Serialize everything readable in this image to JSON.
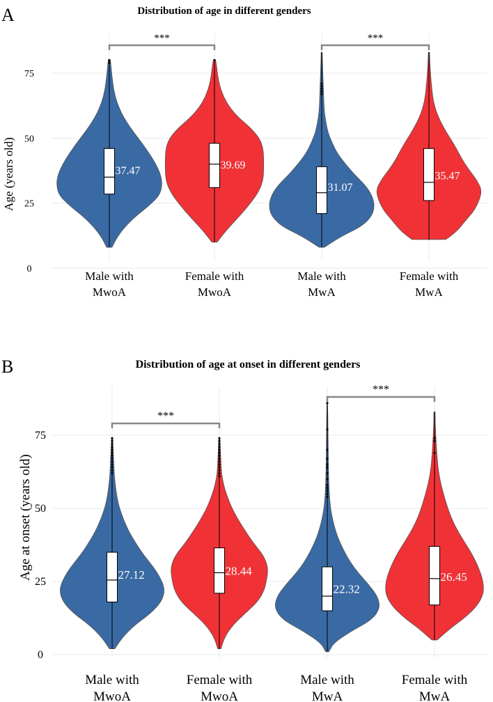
{
  "colors": {
    "male": "#3a6aa3",
    "female": "#f03236",
    "outline": "#555555",
    "grid": "#e8e8e8",
    "bracket": "#888888",
    "box_fill": "#ffffff"
  },
  "chart_data": [
    {
      "panel_label": "A",
      "type": "violin",
      "title": "Distribution of age in different genders",
      "xlabel": "",
      "ylabel": "Age (years old)",
      "ylim": [
        0,
        85
      ],
      "yticks": [
        0,
        25,
        50,
        75
      ],
      "tick_labels": [
        "0",
        "25",
        "50",
        "75"
      ],
      "grid": true,
      "groups": [
        {
          "name": "Male with MwoA",
          "label_lines": [
            "Male with",
            "MwoA"
          ],
          "color_key": "male",
          "min": 8,
          "max": 80,
          "q1": 28.5,
          "median": 35,
          "q3": 46,
          "mean": 37.47,
          "mean_label": "37.47",
          "density": [
            [
              8,
              0.05
            ],
            [
              12,
              0.15
            ],
            [
              16,
              0.3
            ],
            [
              20,
              0.5
            ],
            [
              24,
              0.75
            ],
            [
              28,
              0.95
            ],
            [
              32,
              1.0
            ],
            [
              36,
              0.97
            ],
            [
              40,
              0.88
            ],
            [
              44,
              0.76
            ],
            [
              48,
              0.62
            ],
            [
              52,
              0.47
            ],
            [
              56,
              0.33
            ],
            [
              60,
              0.22
            ],
            [
              64,
              0.14
            ],
            [
              68,
              0.09
            ],
            [
              72,
              0.06
            ],
            [
              76,
              0.04
            ],
            [
              80,
              0.02
            ]
          ],
          "outliers": [
            79,
            80
          ]
        },
        {
          "name": "Female with MwoA",
          "label_lines": [
            "Female with",
            "MwoA"
          ],
          "color_key": "female",
          "min": 10,
          "max": 80,
          "q1": 31,
          "median": 40,
          "q3": 48,
          "mean": 39.69,
          "mean_label": "39.69",
          "density": [
            [
              10,
              0.05
            ],
            [
              14,
              0.2
            ],
            [
              18,
              0.38
            ],
            [
              22,
              0.56
            ],
            [
              26,
              0.72
            ],
            [
              30,
              0.85
            ],
            [
              34,
              0.92
            ],
            [
              38,
              0.93
            ],
            [
              42,
              0.93
            ],
            [
              46,
              0.92
            ],
            [
              50,
              0.85
            ],
            [
              54,
              0.68
            ],
            [
              58,
              0.45
            ],
            [
              62,
              0.28
            ],
            [
              66,
              0.17
            ],
            [
              70,
              0.1
            ],
            [
              74,
              0.06
            ],
            [
              78,
              0.04
            ],
            [
              80,
              0.02
            ]
          ],
          "outliers": [
            80
          ]
        },
        {
          "name": "Male with MwA",
          "label_lines": [
            "Male with",
            "MwA"
          ],
          "color_key": "male",
          "min": 8,
          "max": 83,
          "q1": 21,
          "median": 29,
          "q3": 39,
          "mean": 31.07,
          "mean_label": "31.07",
          "density": [
            [
              8,
              0.05
            ],
            [
              12,
              0.35
            ],
            [
              16,
              0.75
            ],
            [
              20,
              0.95
            ],
            [
              24,
              1.0
            ],
            [
              28,
              0.95
            ],
            [
              32,
              0.82
            ],
            [
              36,
              0.62
            ],
            [
              40,
              0.45
            ],
            [
              44,
              0.3
            ],
            [
              48,
              0.2
            ],
            [
              52,
              0.12
            ],
            [
              56,
              0.08
            ],
            [
              60,
              0.05
            ],
            [
              64,
              0.04
            ],
            [
              70,
              0.03
            ],
            [
              76,
              0.02
            ],
            [
              83,
              0.01
            ]
          ],
          "outliers": [
            67,
            68,
            69,
            70,
            71
          ]
        },
        {
          "name": "Female with MwA",
          "label_lines": [
            "Female with",
            "MwA"
          ],
          "color_key": "female",
          "min": 11,
          "max": 83,
          "q1": 26,
          "median": 33,
          "q3": 46,
          "mean": 35.47,
          "mean_label": "35.47",
          "density": [
            [
              11,
              0.32
            ],
            [
              14,
              0.52
            ],
            [
              18,
              0.68
            ],
            [
              22,
              0.85
            ],
            [
              26,
              0.95
            ],
            [
              30,
              1.0
            ],
            [
              34,
              0.9
            ],
            [
              38,
              0.75
            ],
            [
              42,
              0.62
            ],
            [
              46,
              0.52
            ],
            [
              50,
              0.4
            ],
            [
              54,
              0.28
            ],
            [
              58,
              0.18
            ],
            [
              62,
              0.11
            ],
            [
              66,
              0.07
            ],
            [
              72,
              0.04
            ],
            [
              78,
              0.02
            ],
            [
              83,
              0.01
            ]
          ],
          "outliers": []
        }
      ],
      "comparisons": [
        {
          "groups": [
            0,
            1
          ],
          "y": 85,
          "label": "***"
        },
        {
          "groups": [
            2,
            3
          ],
          "y": 85,
          "label": "***"
        }
      ]
    },
    {
      "panel_label": "B",
      "type": "violin",
      "title": "Distribution of age at onset in different genders",
      "xlabel": "",
      "ylabel": "Age at onset (years old)",
      "ylim": [
        0,
        90
      ],
      "yticks": [
        0,
        25,
        50,
        75
      ],
      "tick_labels": [
        "0",
        "25",
        "50",
        "75"
      ],
      "grid": true,
      "groups": [
        {
          "name": "Male with MwoA",
          "label_lines": [
            "Male with",
            "MwoA"
          ],
          "color_key": "male",
          "min": 2,
          "max": 74,
          "q1": 18,
          "median": 25.5,
          "q3": 35,
          "mean": 27.12,
          "mean_label": "27.12",
          "density": [
            [
              2,
              0.05
            ],
            [
              6,
              0.2
            ],
            [
              10,
              0.42
            ],
            [
              14,
              0.72
            ],
            [
              18,
              0.93
            ],
            [
              22,
              1.0
            ],
            [
              26,
              0.92
            ],
            [
              30,
              0.78
            ],
            [
              34,
              0.6
            ],
            [
              38,
              0.45
            ],
            [
              42,
              0.32
            ],
            [
              46,
              0.22
            ],
            [
              50,
              0.14
            ],
            [
              54,
              0.09
            ],
            [
              58,
              0.06
            ],
            [
              62,
              0.04
            ],
            [
              66,
              0.03
            ],
            [
              70,
              0.02
            ],
            [
              74,
              0.01
            ]
          ],
          "outliers": [
            62,
            63,
            64,
            65,
            66,
            67,
            68,
            69,
            70,
            71,
            72,
            73,
            74
          ]
        },
        {
          "name": "Female with MwoA",
          "label_lines": [
            "Female with",
            "MwoA"
          ],
          "color_key": "female",
          "min": 2,
          "max": 74,
          "q1": 21,
          "median": 28,
          "q3": 36.5,
          "mean": 28.44,
          "mean_label": "28.44",
          "density": [
            [
              2,
              0.03
            ],
            [
              6,
              0.1
            ],
            [
              10,
              0.25
            ],
            [
              14,
              0.48
            ],
            [
              18,
              0.72
            ],
            [
              22,
              0.85
            ],
            [
              26,
              0.9
            ],
            [
              30,
              0.92
            ],
            [
              34,
              0.83
            ],
            [
              38,
              0.65
            ],
            [
              42,
              0.5
            ],
            [
              46,
              0.36
            ],
            [
              50,
              0.24
            ],
            [
              54,
              0.15
            ],
            [
              58,
              0.08
            ],
            [
              62,
              0.04
            ],
            [
              66,
              0.03
            ],
            [
              70,
              0.02
            ],
            [
              74,
              0.01
            ]
          ],
          "outliers": [
            61,
            62,
            63,
            64,
            65,
            66,
            67,
            68,
            69,
            70,
            71,
            72,
            73,
            74
          ]
        },
        {
          "name": "Male with MwA",
          "label_lines": [
            "Male with",
            "MwA"
          ],
          "color_key": "male",
          "min": 1,
          "max": 86,
          "q1": 15,
          "median": 20,
          "q3": 30,
          "mean": 22.32,
          "mean_label": "22.32",
          "density": [
            [
              1,
              0.03
            ],
            [
              4,
              0.12
            ],
            [
              8,
              0.45
            ],
            [
              12,
              0.85
            ],
            [
              16,
              1.0
            ],
            [
              20,
              0.95
            ],
            [
              24,
              0.78
            ],
            [
              28,
              0.58
            ],
            [
              32,
              0.42
            ],
            [
              36,
              0.3
            ],
            [
              40,
              0.2
            ],
            [
              44,
              0.13
            ],
            [
              48,
              0.08
            ],
            [
              52,
              0.05
            ],
            [
              58,
              0.03
            ],
            [
              66,
              0.02
            ],
            [
              76,
              0.015
            ],
            [
              86,
              0.005
            ]
          ],
          "outliers": [
            54,
            55,
            56,
            57,
            58,
            60,
            62,
            64,
            65,
            67,
            70,
            77,
            86
          ]
        },
        {
          "name": "Female with MwA",
          "label_lines": [
            "Female with",
            "MwA"
          ],
          "color_key": "female",
          "min": 5,
          "max": 83,
          "q1": 17,
          "median": 26,
          "q3": 37,
          "mean": 26.45,
          "mean_label": "26.45",
          "density": [
            [
              5,
              0.05
            ],
            [
              9,
              0.3
            ],
            [
              13,
              0.6
            ],
            [
              17,
              0.82
            ],
            [
              21,
              0.93
            ],
            [
              25,
              0.92
            ],
            [
              29,
              0.85
            ],
            [
              33,
              0.75
            ],
            [
              37,
              0.62
            ],
            [
              41,
              0.48
            ],
            [
              45,
              0.36
            ],
            [
              49,
              0.27
            ],
            [
              53,
              0.2
            ],
            [
              57,
              0.14
            ],
            [
              61,
              0.09
            ],
            [
              65,
              0.06
            ],
            [
              70,
              0.04
            ],
            [
              76,
              0.02
            ],
            [
              83,
              0.01
            ]
          ],
          "outliers": [
            69,
            73,
            74
          ]
        }
      ],
      "comparisons": [
        {
          "groups": [
            0,
            1
          ],
          "y": 80,
          "label": "***"
        },
        {
          "groups": [
            2,
            3
          ],
          "y": 89,
          "label": "***"
        }
      ]
    }
  ]
}
